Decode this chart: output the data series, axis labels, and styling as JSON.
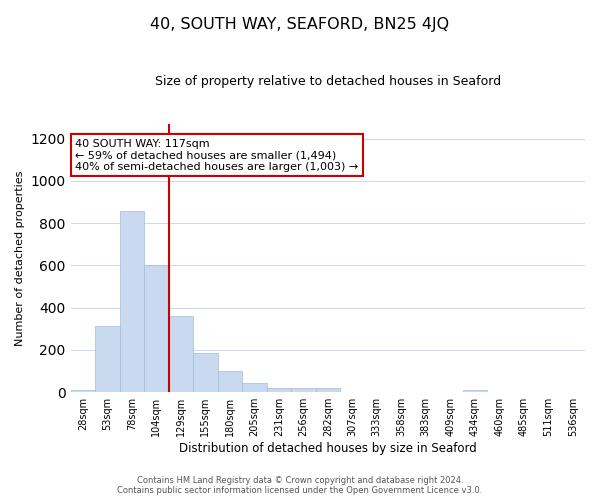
{
  "title": "40, SOUTH WAY, SEAFORD, BN25 4JQ",
  "subtitle": "Size of property relative to detached houses in Seaford",
  "xlabel": "Distribution of detached houses by size in Seaford",
  "ylabel": "Number of detached properties",
  "bar_labels": [
    "28sqm",
    "53sqm",
    "78sqm",
    "104sqm",
    "129sqm",
    "155sqm",
    "180sqm",
    "205sqm",
    "231sqm",
    "256sqm",
    "282sqm",
    "307sqm",
    "333sqm",
    "358sqm",
    "383sqm",
    "409sqm",
    "434sqm",
    "460sqm",
    "485sqm",
    "511sqm",
    "536sqm"
  ],
  "bar_values": [
    10,
    315,
    860,
    600,
    360,
    185,
    100,
    45,
    20,
    20,
    18,
    3,
    0,
    0,
    0,
    0,
    10,
    0,
    0,
    0,
    0
  ],
  "bar_color": "#c8d9f0",
  "bar_edge_color": "#a0bcd8",
  "vline_color": "#cc0000",
  "vline_x_idx": 3,
  "ylim": [
    0,
    1270
  ],
  "yticks": [
    0,
    200,
    400,
    600,
    800,
    1000,
    1200
  ],
  "annotation_title": "40 SOUTH WAY: 117sqm",
  "annotation_line1": "← 59% of detached houses are smaller (1,494)",
  "annotation_line2": "40% of semi-detached houses are larger (1,003) →",
  "annotation_box_color": "#ffffff",
  "annotation_box_edge": "#cc0000",
  "footer_line1": "Contains HM Land Registry data © Crown copyright and database right 2024.",
  "footer_line2": "Contains public sector information licensed under the Open Government Licence v3.0.",
  "background_color": "#ffffff",
  "grid_color": "#ccd9ec"
}
